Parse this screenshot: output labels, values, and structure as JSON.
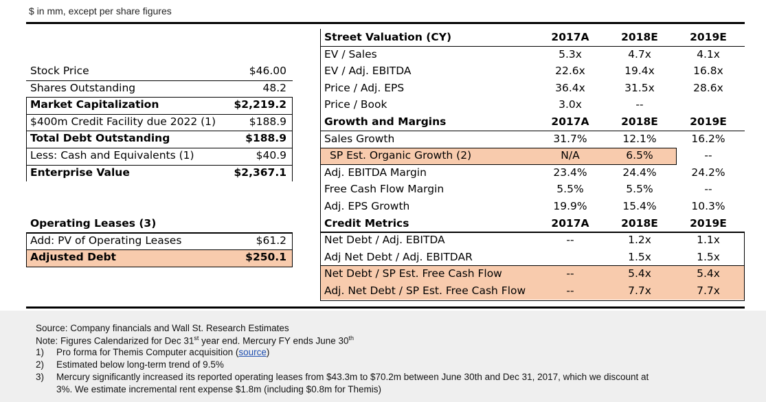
{
  "caption": "$ in mm, except per share figures",
  "left_table": {
    "rows": [
      {
        "label": "Stock Price",
        "value": "$46.00",
        "bold": false
      },
      {
        "label": "Shares Outstanding",
        "value": "48.2",
        "bold": false
      },
      {
        "label": "Market Capitalization",
        "value": "$2,219.2",
        "bold": true
      },
      {
        "label": "$400m Credit Facility due 2022 (1)",
        "value": "$188.9",
        "bold": false
      },
      {
        "label": "Total Debt Outstanding",
        "value": "$188.9",
        "bold": true
      },
      {
        "label": "Less: Cash and Equivalents (1)",
        "value": "$40.9",
        "bold": false
      },
      {
        "label": "Enterprise Value",
        "value": "$2,367.1",
        "bold": true
      }
    ],
    "leases_header": "Operating Leases (3)",
    "leases_rows": [
      {
        "label": "Add: PV of Operating Leases",
        "value": "$61.2",
        "bold": false
      },
      {
        "label": "Adjusted Debt",
        "value": "$250.1",
        "bold": true,
        "highlight": true
      }
    ]
  },
  "right_table": {
    "columns": [
      "2017A",
      "2018E",
      "2019E"
    ],
    "sections": [
      {
        "title": "Street Valuation (CY)",
        "rows": [
          {
            "label": "EV / Sales",
            "values": [
              "5.3x",
              "4.7x",
              "4.1x"
            ]
          },
          {
            "label": "EV / Adj. EBITDA",
            "values": [
              "22.6x",
              "19.4x",
              "16.8x"
            ]
          },
          {
            "label": "Price / Adj. EPS",
            "values": [
              "36.4x",
              "31.5x",
              "28.6x"
            ]
          },
          {
            "label": "Price / Book",
            "values": [
              "3.0x",
              "--",
              ""
            ]
          }
        ]
      },
      {
        "title": "Growth and Margins",
        "rows": [
          {
            "label": "Sales Growth",
            "values": [
              "31.7%",
              "12.1%",
              "16.2%"
            ]
          },
          {
            "label": "SP Est. Organic Growth (2)",
            "values": [
              "N/A",
              "6.5%",
              "--"
            ]
          },
          {
            "label": "Adj. EBITDA Margin",
            "values": [
              "23.4%",
              "24.4%",
              "24.2%"
            ]
          },
          {
            "label": "Free Cash Flow Margin",
            "values": [
              "5.5%",
              "5.5%",
              "--"
            ]
          },
          {
            "label": "Adj. EPS Growth",
            "values": [
              "19.9%",
              "15.4%",
              "10.3%"
            ]
          }
        ]
      },
      {
        "title": "Credit Metrics",
        "rows": [
          {
            "label": "Net Debt / Adj. EBITDA",
            "values": [
              "--",
              "1.2x",
              "1.1x"
            ]
          },
          {
            "label": "Adj Net Debt / Adj. EBITDAR",
            "values": [
              "",
              "1.5x",
              "1.5x"
            ]
          },
          {
            "label": "Net Debt / SP Est. Free Cash Flow",
            "values": [
              "--",
              "5.4x",
              "5.4x"
            ]
          },
          {
            "label": "Adj. Net Debt / SP Est. Free Cash Flow",
            "values": [
              "--",
              "7.7x",
              "7.7x"
            ]
          }
        ]
      }
    ]
  },
  "footer": {
    "source": "Source: Company financials and Wall St. Research Estimates",
    "note_pre": "Note: Figures Calendarized for Dec 31",
    "note_sup1": "st",
    "note_mid": " year end. Mercury FY ends June 30",
    "note_sup2": "th",
    "items": [
      {
        "num": "1)",
        "text": "Pro forma for Themis Computer acquisition (",
        "link": "source",
        "post": ")"
      },
      {
        "num": "2)",
        "text": "Estimated below long-term trend of 9.5%"
      },
      {
        "num": "3)",
        "text": "Mercury significantly increased its reported operating leases from $43.3m to $70.2m between June 30th and Dec 31, 2017, which we discount at",
        "text2": "3%. We estimate incremental rent expense $1.8m (including $0.8m for Themis)"
      }
    ]
  },
  "colors": {
    "highlight": "#f8cbad",
    "footer_bg": "#efefef",
    "link": "#1f4fb0"
  }
}
